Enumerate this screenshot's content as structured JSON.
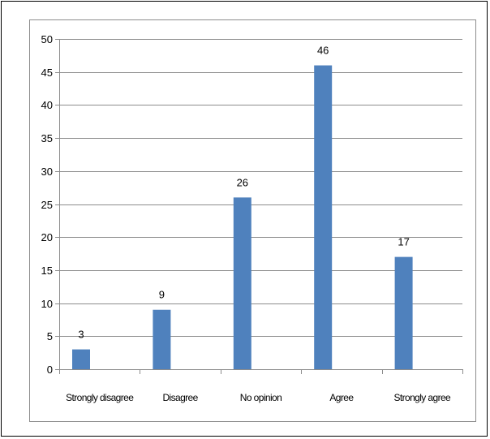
{
  "chart_data": {
    "type": "bar",
    "categories": [
      "Strongly disagree",
      "Disagree",
      "No opinion",
      "Agree",
      "Strongly agree"
    ],
    "values": [
      3,
      9,
      26,
      46,
      17
    ],
    "data_labels": [
      "3",
      "9",
      "26",
      "46",
      "17"
    ],
    "title": "",
    "xlabel": "",
    "ylabel": "",
    "ylim": [
      0,
      50
    ],
    "yticks": [
      0,
      5,
      10,
      15,
      20,
      25,
      30,
      35,
      40,
      45,
      50
    ],
    "ytick_labels": [
      "0",
      "5",
      "10",
      "15",
      "20",
      "25",
      "30",
      "35",
      "40",
      "45",
      "50"
    ],
    "grid": true,
    "legend": "none",
    "bar_color": "#4f81bd",
    "grid_color": "#8c8c8c"
  }
}
